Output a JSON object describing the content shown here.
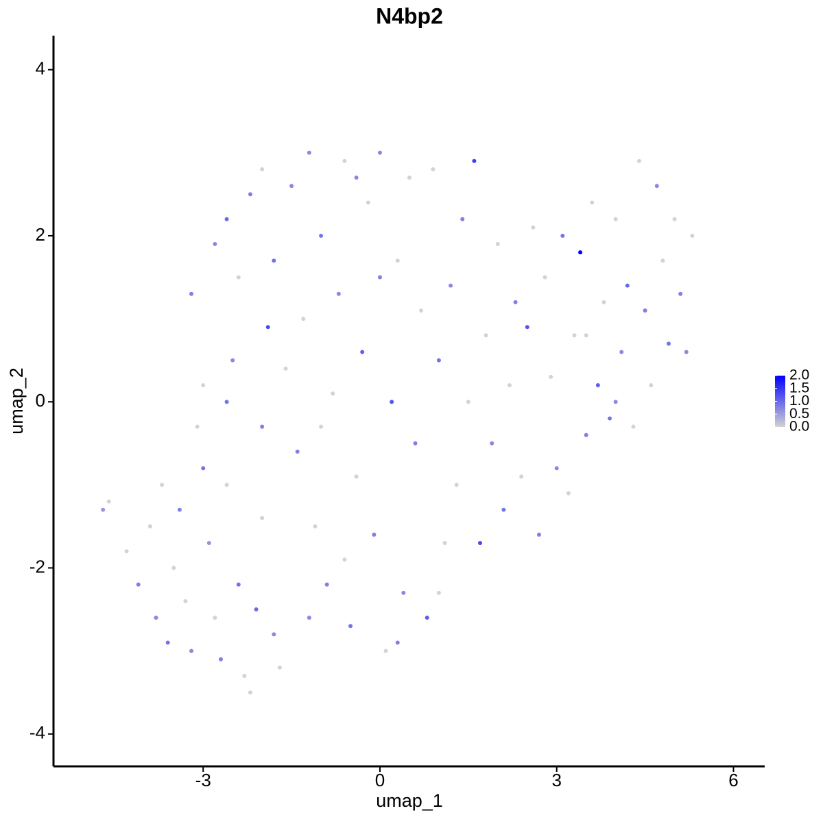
{
  "chart_data": {
    "type": "scatter",
    "title": "N4bp2",
    "x_label": "umap_1",
    "y_label": "umap_2",
    "xlim": [
      -5.54,
      6.53
    ],
    "ylim": [
      -4.39,
      4.41
    ],
    "xticks": [
      -3,
      0,
      3,
      6
    ],
    "yticks": [
      -4,
      -2,
      0,
      2,
      4
    ],
    "color_low": "#d3d3d3",
    "color_high": "#0000ff",
    "colorbar_lim": [
      0,
      2.0
    ],
    "colorbar_ticks": [
      {
        "value": 0,
        "label": "0.0"
      },
      {
        "value": 0.5,
        "label": "0.5"
      },
      {
        "value": 1,
        "label": "1.0"
      },
      {
        "value": 1.5,
        "label": "1.5"
      },
      {
        "value": 2,
        "label": "2.0"
      }
    ],
    "x": [
      -4.7,
      -4.6,
      -4.3,
      -4.1,
      -3.9,
      -3.8,
      -3.6,
      -3.5,
      -3.4,
      -3.3,
      -3.2,
      -3.1,
      -3.0,
      -2.9,
      -2.8,
      -2.7,
      -2.6,
      -2.5,
      -2.4,
      -2.3,
      -2.2,
      -2.1,
      -2.0,
      -1.9,
      -1.8,
      -3.2,
      -3.0,
      -2.8,
      -2.6,
      -2.4,
      -2.2,
      -2.0,
      -1.8,
      -1.6,
      -1.5,
      -1.4,
      -1.3,
      -1.2,
      -1.1,
      -1.0,
      -0.9,
      -0.8,
      -0.7,
      -0.6,
      -0.5,
      -0.4,
      -0.3,
      -0.2,
      -0.1,
      0.0,
      0.1,
      0.2,
      0.3,
      0.4,
      0.5,
      0.6,
      0.7,
      0.8,
      0.9,
      1.0,
      1.1,
      1.2,
      1.3,
      1.4,
      1.5,
      1.6,
      1.7,
      1.8,
      1.9,
      2.0,
      2.1,
      2.2,
      2.3,
      2.4,
      2.5,
      2.6,
      2.7,
      2.8,
      2.9,
      3.0,
      3.1,
      3.2,
      3.3,
      3.4,
      3.5,
      3.6,
      3.7,
      3.8,
      3.9,
      4.0,
      4.1,
      4.2,
      4.3,
      4.4,
      4.5,
      4.6,
      4.7,
      4.8,
      4.9,
      5.0,
      5.1,
      5.2,
      5.3,
      -1.7,
      -1.2,
      -0.6,
      0.3,
      -3.7,
      -2.0,
      -1.0,
      1.0,
      0.0,
      -0.4,
      -2.6,
      3.5,
      4.0
    ],
    "y": [
      -1.3,
      -1.2,
      -1.8,
      -2.2,
      -1.5,
      -2.6,
      -2.9,
      -2.0,
      -1.3,
      -2.4,
      -3.0,
      -0.3,
      -0.8,
      -1.7,
      -2.6,
      -3.1,
      -1.0,
      0.5,
      -2.2,
      -3.3,
      -3.5,
      -2.5,
      -1.4,
      0.9,
      -2.8,
      1.3,
      0.2,
      1.9,
      2.2,
      1.5,
      2.5,
      2.8,
      1.7,
      0.4,
      2.6,
      -0.6,
      1.0,
      3.0,
      -1.5,
      2.0,
      -2.2,
      0.1,
      1.3,
      2.9,
      -2.7,
      -0.9,
      0.6,
      2.4,
      -1.6,
      3.0,
      -3.0,
      0.0,
      1.7,
      -2.3,
      2.7,
      -0.5,
      1.1,
      -2.6,
      2.8,
      0.5,
      -1.7,
      1.4,
      -1.0,
      2.2,
      0.0,
      2.9,
      -1.7,
      0.8,
      -0.5,
      1.9,
      -1.3,
      0.2,
      1.2,
      -0.9,
      0.9,
      2.1,
      -1.6,
      1.5,
      0.3,
      -0.8,
      2.0,
      -1.1,
      0.8,
      1.8,
      -0.4,
      2.4,
      0.2,
      1.2,
      -0.2,
      2.2,
      0.6,
      1.4,
      -0.3,
      2.9,
      1.1,
      0.2,
      2.6,
      1.7,
      0.7,
      2.2,
      1.3,
      0.6,
      2.0,
      -3.2,
      -2.6,
      -1.9,
      -2.9,
      -1.0,
      -0.3,
      -0.3,
      -2.3,
      1.5,
      2.7,
      0.0,
      0.8,
      0.0
    ],
    "values": [
      0.6,
      0,
      0,
      0.8,
      0,
      0.7,
      0.9,
      0,
      0.8,
      0,
      0.7,
      0,
      0.9,
      0.6,
      0,
      0.8,
      0,
      0.7,
      0.9,
      0,
      0,
      1.0,
      0,
      1.3,
      0.7,
      0.8,
      0,
      0.7,
      1.0,
      0,
      0.8,
      0,
      0.9,
      0,
      0.7,
      0.8,
      0,
      0.7,
      0,
      0.9,
      0.8,
      0,
      0.7,
      0,
      0.9,
      0,
      1.1,
      0,
      0.8,
      0.7,
      0,
      1.2,
      0,
      0.7,
      0,
      0.8,
      0,
      1.1,
      0,
      0.9,
      0,
      0.7,
      0,
      0.8,
      0,
      1.4,
      1.3,
      0,
      0.7,
      0,
      0.9,
      0,
      0.8,
      0,
      1.2,
      0,
      0.8,
      0,
      0,
      0.7,
      0.9,
      0,
      0,
      2.0,
      0.8,
      0,
      1.1,
      0,
      0.9,
      0,
      0.7,
      1.0,
      0,
      0,
      0.8,
      0,
      0.7,
      0,
      0.9,
      0,
      0.8,
      0.7,
      0,
      0,
      0.7,
      0,
      0.8,
      0,
      0.8,
      0,
      0,
      0.8,
      0.7,
      0.9,
      0,
      0.7
    ]
  }
}
